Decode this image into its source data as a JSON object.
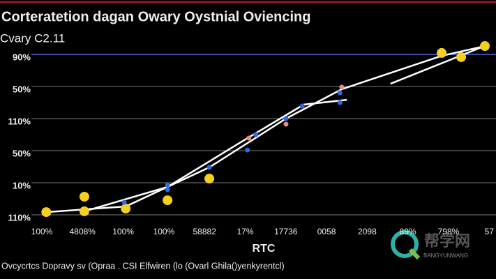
{
  "chart_data": {
    "type": "line",
    "title": "Corteratetion dagan Owary Oystnial Oviencing",
    "subtitle": "Cvary  C2.11",
    "x_label": "RTC",
    "caption": "Ovcycrtcs Dopravy sv (Opraa . CSI Elfwiren (lo (Ovarl Ghila()yenkyrentcl)",
    "watermark": "帮学网",
    "watermark_sub": "BANGYUNWANG",
    "y_labels": [
      "110%",
      "10%",
      "50%",
      "110%",
      "50%",
      "90%"
    ],
    "x_labels": [
      "100%",
      "4808%",
      "100%",
      "100%",
      "58882",
      "17%",
      "17736",
      "0058",
      "2098",
      "89%",
      "798%",
      "57"
    ],
    "xlim": [
      0,
      100
    ],
    "ylim": [
      0,
      100
    ],
    "grid": true,
    "series": [
      {
        "mode": "lines",
        "color": "#ffffff",
        "x": [
          3.2,
          20.3,
          38.3,
          54.8,
          66.8,
          88.3,
          97.6
        ],
        "y": [
          1.7,
          5.2,
          29.6,
          60,
          78.3,
          99.1,
          105.2
        ]
      },
      {
        "mode": "lines",
        "color": "#ffffff",
        "x": [
          11.4,
          29.3,
          46.5,
          58.6,
          67.9
        ],
        "y": [
          2.2,
          17.4,
          47.8,
          68.7,
          71.7
        ]
      },
      {
        "mode": "lines",
        "color": "#ffffff",
        "x": [
          77.3,
          98.3
        ],
        "y": [
          81.7,
          106.1
        ]
      },
      {
        "mode": "markers",
        "color": "#f5d020",
        "size": 7,
        "x": [
          3.2,
          11.4,
          11.4,
          20.3,
          29.3,
          38.3,
          88.3,
          92.5,
          97.6
        ],
        "y": [
          1.7,
          11.3,
          2.2,
          3.9,
          9.1,
          22.6,
          100.9,
          98.3,
          105.2
        ]
      },
      {
        "mode": "markers",
        "color": "#2d6be0",
        "size": 3.5,
        "x": [
          20,
          29.3,
          29.3,
          38.3,
          46.5,
          48.3,
          54.8,
          58.3,
          66.4,
          66.4
        ],
        "y": [
          7.8,
          18.7,
          15.7,
          29.6,
          40.4,
          50,
          60,
          67.8,
          70,
          76.1
        ]
      },
      {
        "mode": "markers",
        "color": "#f08a80",
        "size": 3.5,
        "x": [
          46.8,
          54.8,
          66.8
        ],
        "y": [
          47.8,
          56.5,
          79.6
        ]
      }
    ]
  }
}
